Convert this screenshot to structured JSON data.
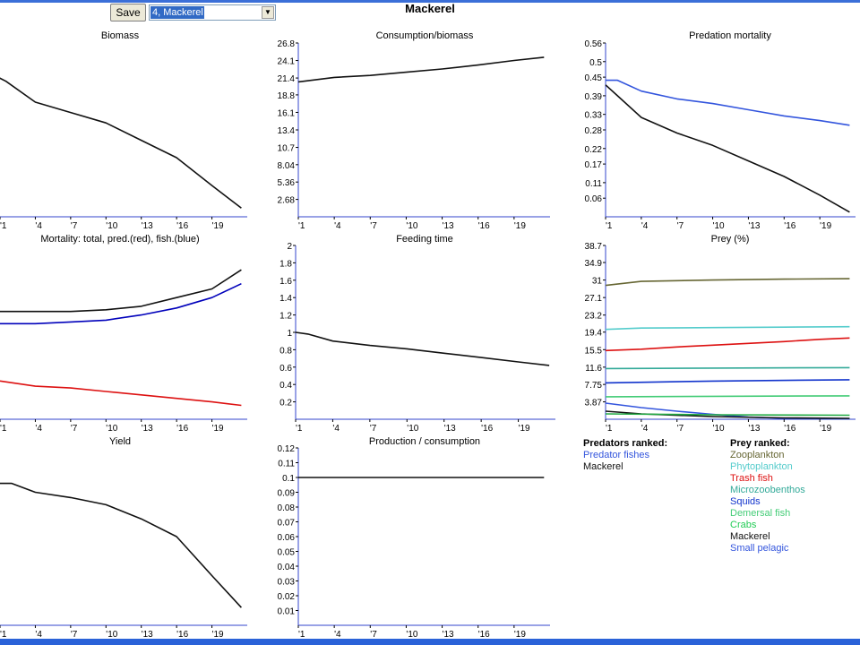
{
  "toolbar": {
    "save_label": "Save",
    "selected_group": "4, Mackerel"
  },
  "page_title": "Mackerel",
  "colors": {
    "black": "#111111",
    "blue": "#3355dd",
    "darkblue": "#0000bb",
    "red": "#dd1111",
    "axis": "#3344cc"
  },
  "x_ticks": [
    "'1",
    "'4",
    "'7",
    "'10",
    "'13",
    "'16",
    "'19"
  ],
  "chart_data": [
    {
      "type": "line",
      "title": "Biomass",
      "ylim": [
        0,
        1
      ],
      "yticks": [],
      "series": [
        {
          "color": "black",
          "values": [
            [
              -0.5,
              0.85
            ],
            [
              1.5,
              0.78
            ],
            [
              4,
              0.66
            ],
            [
              7,
              0.6
            ],
            [
              10,
              0.54
            ],
            [
              13,
              0.44
            ],
            [
              16,
              0.34
            ],
            [
              19,
              0.18
            ],
            [
              21.5,
              0.05
            ]
          ]
        }
      ]
    },
    {
      "type": "line",
      "title": "Consumption/biomass",
      "ylim": [
        0,
        26.8
      ],
      "yticks": [
        {
          "v": 26.8,
          "l": "26.8"
        },
        {
          "v": 24.1,
          "l": "24.1"
        },
        {
          "v": 21.4,
          "l": "21.4"
        },
        {
          "v": 18.8,
          "l": "18.8"
        },
        {
          "v": 16.1,
          "l": "16.1"
        },
        {
          "v": 13.4,
          "l": "13.4"
        },
        {
          "v": 10.7,
          "l": "10.7"
        },
        {
          "v": 8.04,
          "l": "8.04"
        },
        {
          "v": 5.36,
          "l": "5.36"
        },
        {
          "v": 2.68,
          "l": "2.68"
        }
      ],
      "series": [
        {
          "color": "black",
          "values": [
            [
              1,
              20.8
            ],
            [
              4,
              21.5
            ],
            [
              7,
              21.8
            ],
            [
              10,
              22.3
            ],
            [
              13,
              22.8
            ],
            [
              16,
              23.4
            ],
            [
              19,
              24.1
            ],
            [
              21.5,
              24.6
            ]
          ]
        }
      ]
    },
    {
      "type": "line",
      "title": "Predation mortality",
      "ylim": [
        0,
        0.56
      ],
      "yticks": [
        {
          "v": 0.56,
          "l": "0.56"
        },
        {
          "v": 0.5,
          "l": "0.5"
        },
        {
          "v": 0.45,
          "l": "0.45"
        },
        {
          "v": 0.39,
          "l": "0.39"
        },
        {
          "v": 0.33,
          "l": "0.33"
        },
        {
          "v": 0.28,
          "l": "0.28"
        },
        {
          "v": 0.22,
          "l": "0.22"
        },
        {
          "v": 0.17,
          "l": "0.17"
        },
        {
          "v": 0.11,
          "l": "0.11"
        },
        {
          "v": 0.06,
          "l": "0.06"
        }
      ],
      "series": [
        {
          "color": "blue",
          "values": [
            [
              1,
              0.44
            ],
            [
              2,
              0.44
            ],
            [
              4,
              0.405
            ],
            [
              7,
              0.38
            ],
            [
              10,
              0.365
            ],
            [
              13,
              0.345
            ],
            [
              16,
              0.325
            ],
            [
              19,
              0.31
            ],
            [
              21.5,
              0.295
            ]
          ]
        },
        {
          "color": "black",
          "values": [
            [
              1,
              0.425
            ],
            [
              2,
              0.39
            ],
            [
              4,
              0.32
            ],
            [
              7,
              0.27
            ],
            [
              10,
              0.23
            ],
            [
              13,
              0.18
            ],
            [
              16,
              0.13
            ],
            [
              19,
              0.07
            ],
            [
              21.5,
              0.015
            ]
          ]
        }
      ]
    },
    {
      "type": "line",
      "title": "Mortality: total, pred.(red), fish.(blue)",
      "ylim": [
        0,
        1
      ],
      "yticks": [],
      "series": [
        {
          "color": "black",
          "values": [
            [
              -0.5,
              0.6
            ],
            [
              1,
              0.62
            ],
            [
              4,
              0.62
            ],
            [
              7,
              0.62
            ],
            [
              10,
              0.63
            ],
            [
              13,
              0.65
            ],
            [
              16,
              0.7
            ],
            [
              19,
              0.75
            ],
            [
              21.5,
              0.86
            ]
          ]
        },
        {
          "color": "darkblue",
          "values": [
            [
              -0.5,
              0.52
            ],
            [
              1,
              0.55
            ],
            [
              4,
              0.55
            ],
            [
              7,
              0.56
            ],
            [
              10,
              0.57
            ],
            [
              13,
              0.6
            ],
            [
              16,
              0.64
            ],
            [
              19,
              0.7
            ],
            [
              21.5,
              0.78
            ]
          ]
        },
        {
          "color": "red",
          "values": [
            [
              -0.5,
              0.25
            ],
            [
              1,
              0.22
            ],
            [
              4,
              0.19
            ],
            [
              7,
              0.18
            ],
            [
              10,
              0.16
            ],
            [
              13,
              0.14
            ],
            [
              16,
              0.12
            ],
            [
              19,
              0.1
            ],
            [
              21.5,
              0.08
            ]
          ]
        }
      ]
    },
    {
      "type": "line",
      "title": "Feeding time",
      "ylim": [
        0,
        2
      ],
      "yticks": [
        {
          "v": 2,
          "l": "2"
        },
        {
          "v": 1.8,
          "l": "1.8"
        },
        {
          "v": 1.6,
          "l": "1.6"
        },
        {
          "v": 1.4,
          "l": "1.4"
        },
        {
          "v": 1.2,
          "l": "1.2"
        },
        {
          "v": 1,
          "l": "1"
        },
        {
          "v": 0.8,
          "l": "0.8"
        },
        {
          "v": 0.6,
          "l": "0.6"
        },
        {
          "v": 0.4,
          "l": "0.4"
        },
        {
          "v": 0.2,
          "l": "0.2"
        }
      ],
      "series": [
        {
          "color": "black",
          "values": [
            [
              1,
              1
            ],
            [
              2,
              0.98
            ],
            [
              4,
              0.9
            ],
            [
              7,
              0.85
            ],
            [
              10,
              0.81
            ],
            [
              13,
              0.76
            ],
            [
              16,
              0.71
            ],
            [
              19,
              0.66
            ],
            [
              21.5,
              0.62
            ]
          ]
        }
      ]
    },
    {
      "type": "line",
      "title": "Prey (%)",
      "ylim": [
        0,
        38.7
      ],
      "yticks": [
        {
          "v": 38.7,
          "l": "38.7"
        },
        {
          "v": 34.9,
          "l": "34.9"
        },
        {
          "v": 31,
          "l": "31"
        },
        {
          "v": 27.1,
          "l": "27.1"
        },
        {
          "v": 23.2,
          "l": "23.2"
        },
        {
          "v": 19.4,
          "l": "19.4"
        },
        {
          "v": 15.5,
          "l": "15.5"
        },
        {
          "v": 11.6,
          "l": "11.6"
        },
        {
          "v": 7.75,
          "l": "7.75"
        },
        {
          "v": 3.87,
          "l": "3.87"
        }
      ],
      "series": [
        {
          "color": "#666633",
          "values": [
            [
              1,
              29.8
            ],
            [
              4,
              30.7
            ],
            [
              10,
              31
            ],
            [
              16,
              31.2
            ],
            [
              21.5,
              31.3
            ]
          ]
        },
        {
          "color": "#55cccc",
          "values": [
            [
              1,
              20
            ],
            [
              4,
              20.3
            ],
            [
              10,
              20.4
            ],
            [
              16,
              20.5
            ],
            [
              21.5,
              20.6
            ]
          ]
        },
        {
          "color": "red",
          "values": [
            [
              1,
              15.3
            ],
            [
              4,
              15.6
            ],
            [
              7,
              16.1
            ],
            [
              10,
              16.5
            ],
            [
              13,
              16.9
            ],
            [
              16,
              17.3
            ],
            [
              19,
              17.8
            ],
            [
              21.5,
              18.1
            ]
          ]
        },
        {
          "color": "#33aa99",
          "values": [
            [
              1,
              11.3
            ],
            [
              10,
              11.4
            ],
            [
              21.5,
              11.5
            ]
          ]
        },
        {
          "color": "#1133cc",
          "values": [
            [
              1,
              8.1
            ],
            [
              10,
              8.5
            ],
            [
              21.5,
              8.8
            ]
          ]
        },
        {
          "color": "#44cc77",
          "values": [
            [
              1,
              5
            ],
            [
              10,
              5.1
            ],
            [
              21.5,
              5.2
            ]
          ]
        },
        {
          "color": "#3355dd",
          "values": [
            [
              1,
              3.6
            ],
            [
              4,
              2.6
            ],
            [
              7,
              1.8
            ],
            [
              10,
              1.1
            ],
            [
              13,
              0.5
            ],
            [
              16,
              0.2
            ],
            [
              21.5,
              0.1
            ]
          ]
        },
        {
          "color": "black",
          "values": [
            [
              1,
              1.8
            ],
            [
              4,
              1.2
            ],
            [
              10,
              0.6
            ],
            [
              16,
              0.3
            ],
            [
              21.5,
              0.2
            ]
          ]
        },
        {
          "color": "#22aa44",
          "values": [
            [
              1,
              1.2
            ],
            [
              10,
              1
            ],
            [
              21.5,
              0.9
            ]
          ]
        }
      ]
    },
    {
      "type": "line",
      "title": "Yield",
      "ylim": [
        0,
        1
      ],
      "yticks": [],
      "series": [
        {
          "color": "black",
          "values": [
            [
              -0.5,
              0.78
            ],
            [
              1,
              0.8
            ],
            [
              2,
              0.8
            ],
            [
              4,
              0.75
            ],
            [
              7,
              0.72
            ],
            [
              10,
              0.68
            ],
            [
              13,
              0.6
            ],
            [
              16,
              0.5
            ],
            [
              19,
              0.28
            ],
            [
              21.5,
              0.1
            ]
          ]
        }
      ]
    },
    {
      "type": "line",
      "title": "Production / consumption",
      "ylim": [
        0,
        0.12
      ],
      "yticks": [
        {
          "v": 0.12,
          "l": "0.12"
        },
        {
          "v": 0.11,
          "l": "0.11"
        },
        {
          "v": 0.1,
          "l": "0.1"
        },
        {
          "v": 0.09,
          "l": "0.09"
        },
        {
          "v": 0.08,
          "l": "0.08"
        },
        {
          "v": 0.07,
          "l": "0.07"
        },
        {
          "v": 0.06,
          "l": "0.06"
        },
        {
          "v": 0.05,
          "l": "0.05"
        },
        {
          "v": 0.04,
          "l": "0.04"
        },
        {
          "v": 0.03,
          "l": "0.03"
        },
        {
          "v": 0.02,
          "l": "0.02"
        },
        {
          "v": 0.01,
          "l": "0.01"
        }
      ],
      "series": [
        {
          "color": "black",
          "values": [
            [
              1,
              0.1
            ],
            [
              21.5,
              0.1
            ]
          ]
        }
      ]
    }
  ],
  "predators_ranked": {
    "header": "Predators ranked:",
    "items": [
      {
        "label": "Predator fishes",
        "color": "#3355dd"
      },
      {
        "label": "Mackerel",
        "color": "#111111"
      }
    ]
  },
  "prey_ranked": {
    "header": "Prey ranked:",
    "items": [
      {
        "label": "Zooplankton",
        "color": "#666633"
      },
      {
        "label": "Phytoplankton",
        "color": "#55cccc"
      },
      {
        "label": "Trash fish",
        "color": "#dd1111"
      },
      {
        "label": "Microzoobenthos",
        "color": "#33aa99"
      },
      {
        "label": "Squids",
        "color": "#1133cc"
      },
      {
        "label": "Demersal fish",
        "color": "#44cc77"
      },
      {
        "label": "Crabs",
        "color": "#22cc55"
      },
      {
        "label": "Mackerel",
        "color": "#111111"
      },
      {
        "label": "Small pelagic",
        "color": "#3355dd"
      }
    ]
  }
}
